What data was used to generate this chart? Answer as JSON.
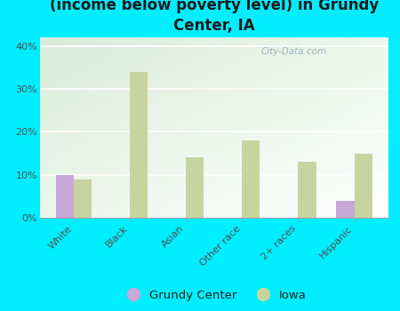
{
  "title": "Breakdown of poor residents within races\n(income below poverty level) in Grundy\nCenter, IA",
  "categories": [
    "White",
    "Black",
    "Asian",
    "Other race",
    "2+ races",
    "Hispanic"
  ],
  "grundy_center": [
    10,
    0,
    0,
    0,
    0,
    4
  ],
  "iowa": [
    9,
    34,
    14,
    18,
    13,
    15
  ],
  "grundy_color": "#c8a8d8",
  "iowa_color": "#c8d4a0",
  "background_color": "#00eeff",
  "plot_bg_top_left": "#d8eed8",
  "plot_bg_top_right": "#f0f8f0",
  "plot_bg_bottom": "#ffffff",
  "yticks": [
    0,
    10,
    20,
    30,
    40
  ],
  "ylim": [
    0,
    42
  ],
  "bar_width": 0.32,
  "title_fontsize": 12,
  "tick_fontsize": 8,
  "legend_fontsize": 9.5,
  "watermark": "City-Data.com"
}
